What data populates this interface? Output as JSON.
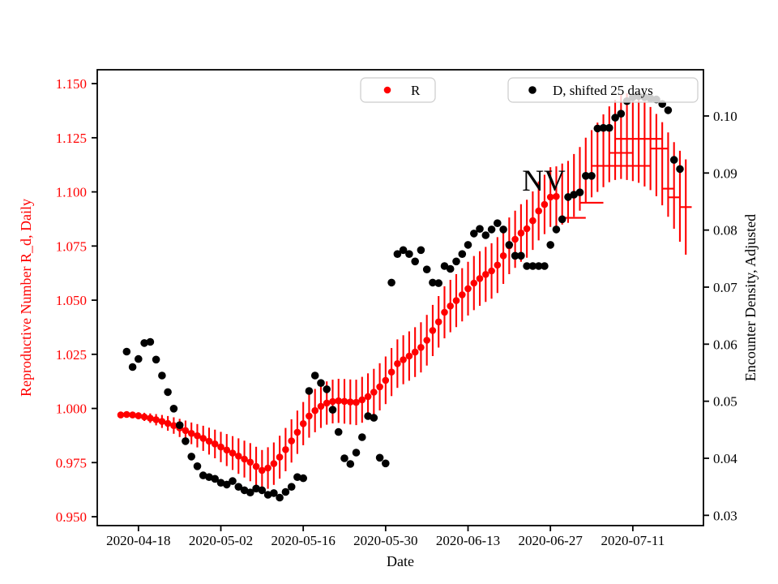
{
  "chart_data": {
    "type": "scatter",
    "xlabel": "Date",
    "ylabel_left": "Reproductive Number R_d, Daily",
    "ylabel_right": "Encounter Density, Adjusted",
    "annotation": {
      "text": "NV",
      "date": "2020-06-25",
      "value": 1.107
    },
    "x_domain": [
      "2020-04-11",
      "2020-07-23"
    ],
    "x_ticks": [
      "2020-04-18",
      "2020-05-02",
      "2020-05-16",
      "2020-05-30",
      "2020-06-13",
      "2020-06-27",
      "2020-07-11"
    ],
    "y_left": {
      "color": "#ff0000",
      "domain": [
        0.9459,
        1.1564
      ],
      "tick_values": [
        1.15,
        1.125,
        1.1,
        1.075,
        1.05,
        1.025,
        1.0,
        0.975,
        0.95
      ],
      "tick_labels": [
        "1.150",
        "1.125",
        "1.100",
        "1.075",
        "1.050",
        "1.025",
        "1.000",
        "0.975",
        "0.950"
      ]
    },
    "y_right": {
      "color": "#000000",
      "domain": [
        0.0282,
        0.1081
      ],
      "tick_values": [
        0.1,
        0.09,
        0.08,
        0.07,
        0.06,
        0.05,
        0.04,
        0.03
      ],
      "tick_labels": [
        "0.10",
        "0.09",
        "0.08",
        "0.07",
        "0.06",
        "0.05",
        "0.04",
        "0.03"
      ]
    },
    "legend": [
      {
        "label": "R",
        "color": "#ff0000"
      },
      {
        "label": "D, shifted 25 days",
        "color": "#000000"
      }
    ],
    "series": {
      "r": {
        "name": "R",
        "color": "#ff0000",
        "start_date": "2020-04-15",
        "dot_last_date": "2020-06-28",
        "values": [
          0.997,
          0.9972,
          0.997,
          0.9966,
          0.9961,
          0.9955,
          0.9948,
          0.994,
          0.9931,
          0.9921,
          0.991,
          0.9898,
          0.9885,
          0.9874,
          0.9862,
          0.9849,
          0.9836,
          0.9822,
          0.9808,
          0.9794,
          0.978,
          0.9766,
          0.9752,
          0.9732,
          0.9714,
          0.9725,
          0.9745,
          0.9775,
          0.981,
          0.985,
          0.989,
          0.993,
          0.9965,
          0.999,
          1.001,
          1.0025,
          1.0032,
          1.0035,
          1.0033,
          1.003,
          1.0028,
          1.004,
          1.0055,
          1.0075,
          1.01,
          1.013,
          1.0168,
          1.0207,
          1.0225,
          1.0242,
          1.026,
          1.0282,
          1.0315,
          1.036,
          1.04,
          1.0444,
          1.0473,
          1.0498,
          1.0525,
          1.0553,
          1.0579,
          1.06,
          1.0619,
          1.0635,
          1.0662,
          1.0705,
          1.0751,
          1.0781,
          1.081,
          1.083,
          1.0867,
          1.0912,
          1.0942,
          1.0976,
          1.0979,
          1.099,
          1.1,
          1.103,
          1.106,
          1.11,
          1.113,
          1.116,
          1.119,
          1.122,
          1.124,
          1.1255,
          1.1255,
          1.125,
          1.124,
          1.122,
          1.12,
          1.117,
          1.113,
          1.108,
          1.103,
          1.098,
          1.093
        ],
        "errors": [
          0.0008,
          0.001,
          0.0013,
          0.0016,
          0.0019,
          0.0022,
          0.0026,
          0.003,
          0.0034,
          0.0038,
          0.0042,
          0.0046,
          0.005,
          0.0054,
          0.0058,
          0.0062,
          0.0066,
          0.007,
          0.0074,
          0.0078,
          0.0082,
          0.0085,
          0.0088,
          0.0091,
          0.0094,
          0.0096,
          0.0098,
          0.0099,
          0.01,
          0.01,
          0.01,
          0.01,
          0.01,
          0.01,
          0.01,
          0.01,
          0.0101,
          0.0102,
          0.0103,
          0.0104,
          0.0105,
          0.0106,
          0.0107,
          0.0108,
          0.0109,
          0.011,
          0.0111,
          0.0112,
          0.0113,
          0.0114,
          0.0115,
          0.0116,
          0.0117,
          0.0118,
          0.0119,
          0.012,
          0.0121,
          0.0122,
          0.0123,
          0.0124,
          0.0125,
          0.0126,
          0.0127,
          0.0128,
          0.0129,
          0.013,
          0.0131,
          0.0132,
          0.0133,
          0.0134,
          0.0135,
          0.0136,
          0.0137,
          0.0138,
          0.0139,
          0.0141,
          0.0143,
          0.0145,
          0.0147,
          0.015,
          0.0155,
          0.016,
          0.0168,
          0.0175,
          0.0185,
          0.0195,
          0.02,
          0.02,
          0.0198,
          0.0195,
          0.0192,
          0.019,
          0.0192,
          0.0195,
          0.02,
          0.021,
          0.022
        ]
      },
      "r_dashes": [
        {
          "start": "2020-06-29",
          "end": "2020-07-03",
          "value": 1.088
        },
        {
          "start": "2020-07-02",
          "end": "2020-07-06",
          "value": 1.095
        },
        {
          "start": "2020-07-04",
          "end": "2020-07-14",
          "value": 1.112
        },
        {
          "start": "2020-07-07",
          "end": "2020-07-11",
          "value": 1.118
        },
        {
          "start": "2020-07-08",
          "end": "2020-07-16",
          "value": 1.1245
        },
        {
          "start": "2020-07-14",
          "end": "2020-07-17",
          "value": 1.12
        },
        {
          "start": "2020-07-16",
          "end": "2020-07-18",
          "value": 1.1015
        },
        {
          "start": "2020-07-17",
          "end": "2020-07-19",
          "value": 1.0975
        },
        {
          "start": "2020-07-19",
          "end": "2020-07-21",
          "value": 1.093
        }
      ],
      "d": {
        "name": "D, shifted 25 days",
        "color": "#000000",
        "start_date": "2020-04-16",
        "values": [
          0.0587,
          0.056,
          0.0574,
          0.0602,
          0.0604,
          0.0573,
          0.0545,
          0.0516,
          0.0487,
          0.0458,
          0.043,
          0.0403,
          0.0386,
          0.037,
          0.0367,
          0.0364,
          0.0357,
          0.0354,
          0.036,
          0.035,
          0.0344,
          0.034,
          0.0347,
          0.0344,
          0.0336,
          0.0339,
          0.0331,
          0.0341,
          0.035,
          0.0367,
          0.0365,
          0.0518,
          0.0545,
          0.0532,
          0.0521,
          0.0485,
          0.0446,
          0.04,
          0.039,
          0.041,
          0.0437,
          0.0474,
          0.0471,
          0.0401,
          0.0391,
          0.0708,
          0.0758,
          0.0765,
          0.0758,
          0.0745,
          0.0765,
          0.0731,
          0.0708,
          0.0707,
          0.0737,
          0.0732,
          0.0745,
          0.0758,
          0.0774,
          0.0794,
          0.0802,
          0.0791,
          0.0801,
          0.0812,
          0.0801,
          0.0774,
          0.0755,
          0.0755,
          0.0737,
          0.0737,
          0.0737,
          0.0737,
          0.0774,
          0.0801,
          0.0819,
          0.0858,
          0.0862,
          0.0866,
          0.0895,
          0.0895,
          0.0978,
          0.0979,
          0.0979,
          0.0997,
          0.1004,
          0.1026,
          0.1033,
          0.1035,
          0.1033,
          0.1031,
          0.1029,
          0.1021,
          0.101,
          0.0923,
          0.0907
        ]
      }
    },
    "style": {
      "background": "#ffffff",
      "frame_color": "#000000",
      "legend_border": "#cccccc",
      "legend_fill_alpha": 0.8
    }
  }
}
